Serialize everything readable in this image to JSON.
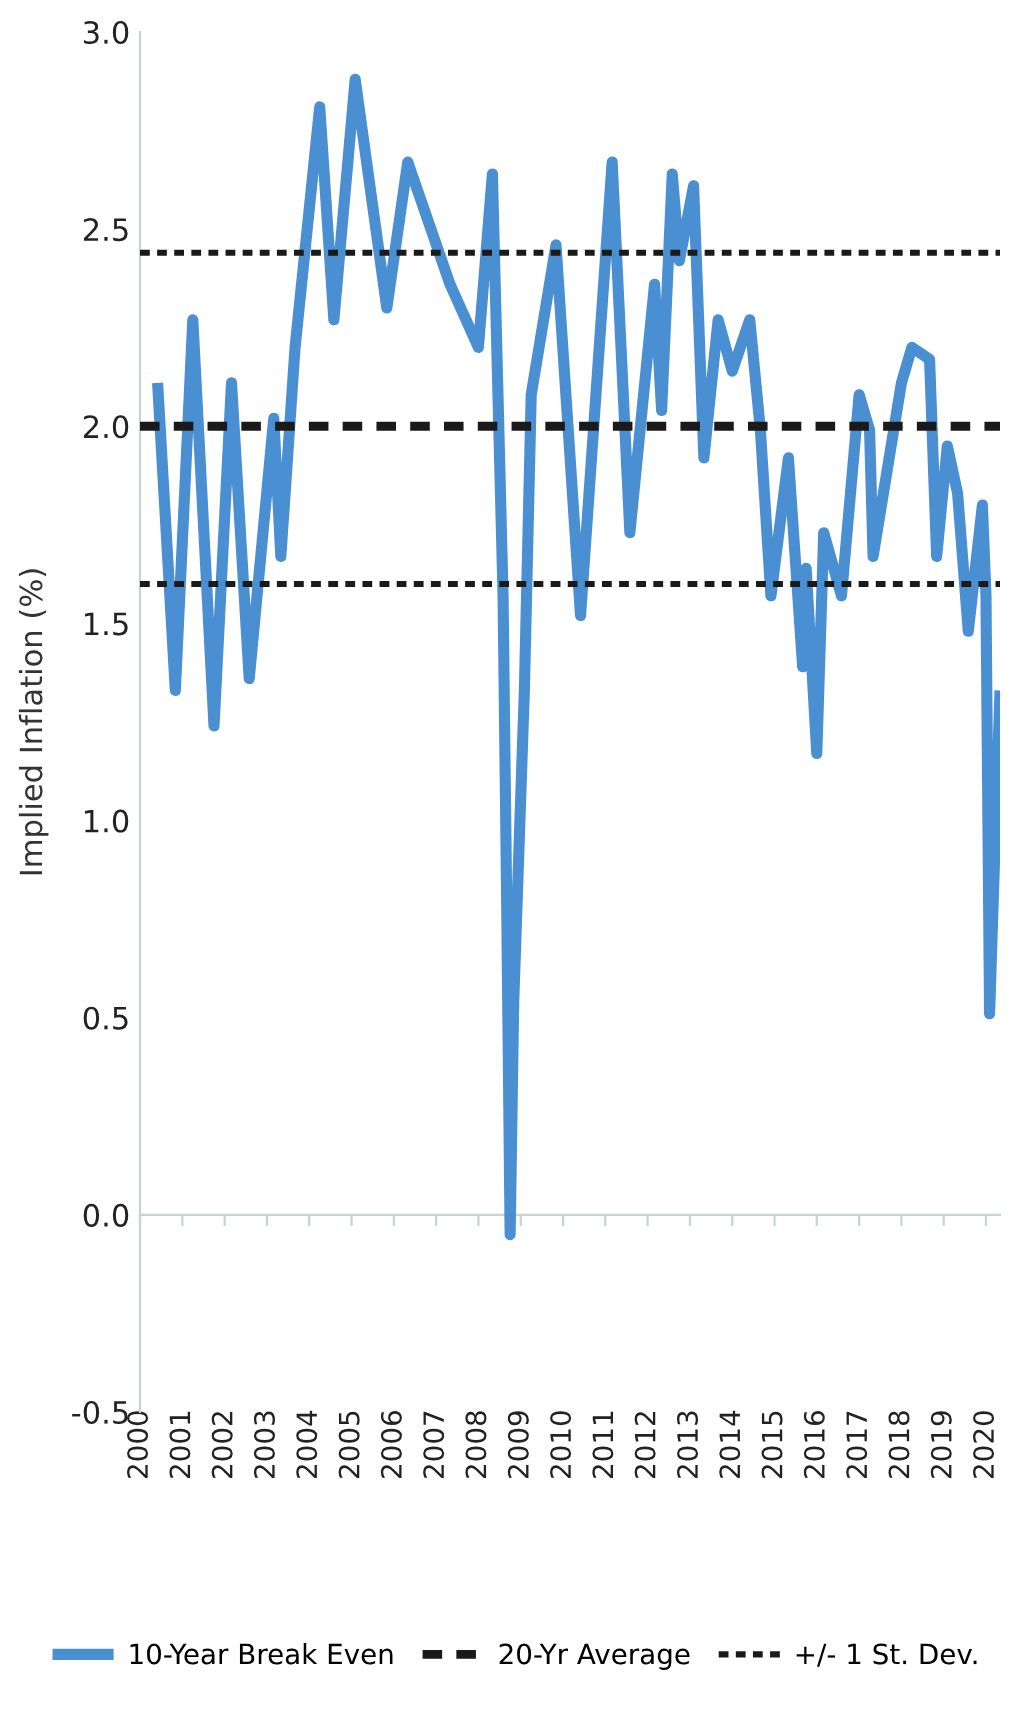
{
  "chart_data": {
    "type": "line",
    "ylabel": "Implied Inflation (%)",
    "x": [
      "2000-06",
      "2000-11",
      "2001-04",
      "2001-10",
      "2002-03",
      "2002-08",
      "2003-03",
      "2003-05",
      "2003-09",
      "2004-04",
      "2004-08",
      "2005-02",
      "2005-11",
      "2006-05",
      "2007-05",
      "2008-01",
      "2008-05",
      "2008-08",
      "2008-09",
      "2008-10",
      "2008-11",
      "2009-02",
      "2009-04",
      "2009-11",
      "2010-06",
      "2011-03",
      "2011-08",
      "2012-03",
      "2012-05",
      "2012-08",
      "2012-10",
      "2013-02",
      "2013-05",
      "2013-09",
      "2014-01",
      "2014-06",
      "2014-09",
      "2014-12",
      "2015-05",
      "2015-09",
      "2015-10",
      "2016-01",
      "2016-03",
      "2016-08",
      "2017-01",
      "2017-04",
      "2017-05",
      "2018-01",
      "2018-04",
      "2018-09",
      "2018-11",
      "2019-02",
      "2019-05",
      "2019-08",
      "2019-12",
      "2020-01",
      "2020-02",
      "2020-05"
    ],
    "series": [
      {
        "name": "10-Year Break Even",
        "color": "#4a8fd2",
        "values": [
          2.11,
          1.33,
          2.27,
          1.24,
          2.11,
          1.36,
          2.02,
          1.67,
          2.2,
          2.81,
          2.27,
          2.88,
          2.3,
          2.67,
          2.36,
          2.2,
          2.64,
          1.57,
          0.8,
          -0.05,
          0.54,
          1.33,
          2.08,
          2.46,
          1.52,
          2.67,
          1.73,
          2.36,
          2.04,
          2.64,
          2.42,
          2.61,
          1.92,
          2.27,
          2.14,
          2.27,
          1.99,
          1.57,
          1.92,
          1.39,
          1.64,
          1.17,
          1.73,
          1.57,
          2.08,
          1.99,
          1.67,
          2.11,
          2.2,
          2.17,
          1.67,
          1.95,
          1.83,
          1.48,
          1.8,
          1.57,
          0.51,
          1.33
        ]
      }
    ],
    "xlim": [
      "2000-01",
      "2020-05"
    ],
    "xticks": [
      "2000",
      "2001",
      "2002",
      "2003",
      "2004",
      "2005",
      "2006",
      "2007",
      "2008",
      "2009",
      "2010",
      "2011",
      "2012",
      "2013",
      "2014",
      "2015",
      "2016",
      "2017",
      "2018",
      "2019",
      "2020"
    ],
    "ylim": [
      -0.5,
      3.0
    ],
    "yticks": [
      {
        "value": -0.5,
        "label": "-0.5"
      },
      {
        "value": 0,
        "label": "0.0"
      },
      {
        "value": 0.5,
        "label": "0.5"
      },
      {
        "value": 1,
        "label": "1.0"
      },
      {
        "value": 1.5,
        "label": "1.5"
      },
      {
        "value": 2,
        "label": "2.0"
      },
      {
        "value": 2.5,
        "label": "2.5"
      },
      {
        "value": 3,
        "label": "3.0"
      }
    ],
    "ref_lines": [
      {
        "axis": "y",
        "value": 2.0,
        "label": "20-Yr Average",
        "color": "#1a1a1a",
        "line_style": "dashed"
      },
      {
        "axis": "y",
        "value": 2.44,
        "label": "+/- 1 St. Dev.",
        "color": "#1a1a1a",
        "line_style": "dotted"
      },
      {
        "axis": "y",
        "value": 1.6,
        "label": null,
        "color": "#1a1a1a",
        "line_style": "dotted"
      }
    ],
    "grid": false,
    "legend": "bottom",
    "marker": "none",
    "line_style": "solid"
  }
}
